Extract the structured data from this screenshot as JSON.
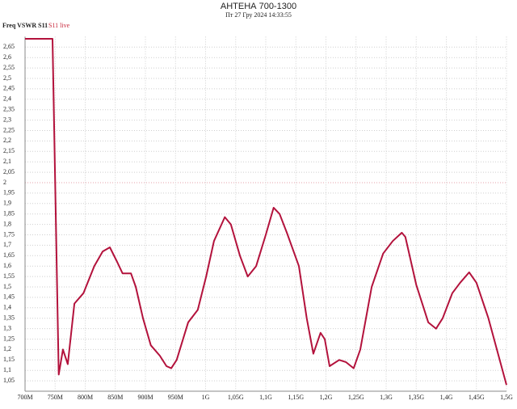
{
  "chart_data": {
    "type": "line",
    "title": "АНТЕНА 700-1300",
    "subtitle": "Пт 27 Гру 2024 14:33:55",
    "header_label": "Freq VSWR S11",
    "x": [
      700,
      745.6,
      756,
      763,
      771,
      782,
      797,
      815,
      829,
      841,
      853,
      862,
      876,
      884,
      896,
      909,
      924,
      935,
      943,
      952,
      971,
      987,
      1001,
      1014,
      1032,
      1042,
      1057,
      1070,
      1084,
      1100,
      1113,
      1123,
      1135,
      1155,
      1168,
      1179,
      1191,
      1198,
      1206,
      1222,
      1233,
      1246,
      1257,
      1276,
      1295,
      1311,
      1326,
      1332,
      1350,
      1370,
      1383,
      1394,
      1410,
      1423,
      1438,
      1450,
      1470,
      1500
    ],
    "series": [
      {
        "name": "S11 live",
        "color": "#b3123c",
        "values": [
          2.69,
          2.69,
          1.08,
          1.2,
          1.13,
          1.42,
          1.47,
          1.6,
          1.67,
          1.69,
          1.62,
          1.565,
          1.565,
          1.5,
          1.35,
          1.22,
          1.17,
          1.12,
          1.11,
          1.15,
          1.33,
          1.39,
          1.55,
          1.72,
          1.835,
          1.8,
          1.65,
          1.55,
          1.6,
          1.75,
          1.88,
          1.85,
          1.76,
          1.6,
          1.35,
          1.18,
          1.28,
          1.25,
          1.12,
          1.15,
          1.14,
          1.11,
          1.2,
          1.5,
          1.66,
          1.72,
          1.76,
          1.74,
          1.51,
          1.33,
          1.3,
          1.35,
          1.47,
          1.52,
          1.57,
          1.52,
          1.35,
          1.03
        ]
      }
    ],
    "xlim": [
      700,
      1500
    ],
    "ylim": [
      1,
      2.7
    ],
    "xticks": [
      {
        "value": 700,
        "label": "700M"
      },
      {
        "value": 750,
        "label": "750M"
      },
      {
        "value": 800,
        "label": "800M"
      },
      {
        "value": 850,
        "label": "850M"
      },
      {
        "value": 900,
        "label": "900M"
      },
      {
        "value": 950,
        "label": "950M"
      },
      {
        "value": 1000,
        "label": "1G"
      },
      {
        "value": 1050,
        "label": "1,05G"
      },
      {
        "value": 1100,
        "label": "1,1G"
      },
      {
        "value": 1150,
        "label": "1,15G"
      },
      {
        "value": 1200,
        "label": "1,2G"
      },
      {
        "value": 1250,
        "label": "1,25G"
      },
      {
        "value": 1300,
        "label": "1,3G"
      },
      {
        "value": 1350,
        "label": "1,35G"
      },
      {
        "value": 1400,
        "label": "1,4G"
      },
      {
        "value": 1450,
        "label": "1,45G"
      },
      {
        "value": 1500,
        "label": "1,5G"
      }
    ],
    "yticks": [
      {
        "value": 1.05,
        "label": "1,05"
      },
      {
        "value": 1.1,
        "label": "1,1"
      },
      {
        "value": 1.15,
        "label": "1,15"
      },
      {
        "value": 1.2,
        "label": "1,2"
      },
      {
        "value": 1.25,
        "label": "1,25"
      },
      {
        "value": 1.3,
        "label": "1,3"
      },
      {
        "value": 1.35,
        "label": "1,35"
      },
      {
        "value": 1.4,
        "label": "1,4"
      },
      {
        "value": 1.45,
        "label": "1,45"
      },
      {
        "value": 1.5,
        "label": "1,5"
      },
      {
        "value": 1.55,
        "label": "1,55"
      },
      {
        "value": 1.6,
        "label": "1,6"
      },
      {
        "value": 1.65,
        "label": "1,65"
      },
      {
        "value": 1.7,
        "label": "1,7"
      },
      {
        "value": 1.75,
        "label": "1,75"
      },
      {
        "value": 1.8,
        "label": "1,8"
      },
      {
        "value": 1.85,
        "label": "1,85"
      },
      {
        "value": 1.9,
        "label": "1,9"
      },
      {
        "value": 1.95,
        "label": "1,95"
      },
      2,
      {
        "value": 2.05,
        "label": "2,05"
      },
      {
        "value": 2.1,
        "label": "2,1"
      },
      {
        "value": 2.15,
        "label": "2,15"
      },
      {
        "value": 2.2,
        "label": "2,2"
      },
      {
        "value": 2.25,
        "label": "2,25"
      },
      {
        "value": 2.3,
        "label": "2,3"
      },
      {
        "value": 2.35,
        "label": "2,35"
      },
      {
        "value": 2.4,
        "label": "2,4"
      },
      {
        "value": 2.45,
        "label": "2,45"
      },
      {
        "value": 2.5,
        "label": "2,5"
      },
      {
        "value": 2.55,
        "label": "2,55"
      },
      {
        "value": 2.6,
        "label": "2,6"
      },
      {
        "value": 2.65,
        "label": "2,65"
      }
    ],
    "grid": true
  }
}
